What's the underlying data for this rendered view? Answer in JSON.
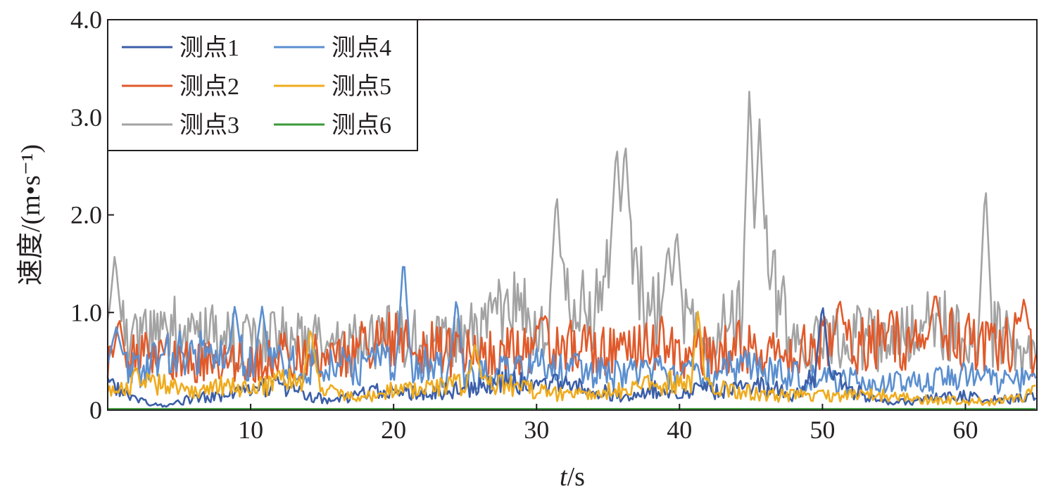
{
  "chart_data": {
    "type": "line",
    "xlabel": "t/s",
    "xlabel_var": "t",
    "xlabel_unit": "s",
    "ylabel": "速度/(m•s⁻¹)",
    "xlim": [
      0,
      65
    ],
    "ylim": [
      0,
      4.0
    ],
    "x_ticks": [
      10,
      20,
      30,
      40,
      50,
      60
    ],
    "x_tick_labels": [
      "10",
      "20",
      "30",
      "40",
      "50",
      "60"
    ],
    "y_ticks": [
      0,
      1.0,
      2.0,
      3.0,
      4.0
    ],
    "y_tick_labels": [
      "0",
      "1.0",
      "2.0",
      "3.0",
      "4.0"
    ],
    "grid": false,
    "legend_position": "top-left",
    "legend_columns": 2,
    "series": [
      {
        "name": "测点1",
        "color": "#3b5ea8",
        "x": [
          0,
          2,
          4,
          6,
          8,
          10,
          12,
          14,
          16,
          18,
          20,
          22,
          24,
          26,
          28,
          30,
          32,
          34,
          36,
          38,
          40,
          42,
          44,
          46,
          48,
          50,
          52,
          54,
          56,
          58,
          60,
          62,
          64,
          65
        ],
        "values": [
          0.3,
          0.1,
          0.05,
          0.12,
          0.15,
          0.2,
          0.25,
          0.15,
          0.1,
          0.18,
          0.22,
          0.15,
          0.2,
          0.25,
          0.3,
          0.25,
          0.35,
          0.2,
          0.15,
          0.22,
          0.18,
          0.2,
          0.2,
          0.25,
          0.15,
          0.4,
          0.2,
          0.1,
          0.08,
          0.12,
          0.15,
          0.1,
          0.12,
          0.15
        ],
        "peaks": [
          {
            "x": 50.0,
            "y": 1.1
          }
        ]
      },
      {
        "name": "测点2",
        "color": "#e05a2b",
        "x": [
          0,
          2,
          4,
          6,
          8,
          10,
          12,
          14,
          16,
          18,
          20,
          22,
          24,
          26,
          28,
          30,
          32,
          34,
          36,
          38,
          40,
          42,
          44,
          46,
          48,
          50,
          52,
          54,
          56,
          58,
          60,
          62,
          64,
          65
        ],
        "values": [
          0.45,
          0.55,
          0.6,
          0.5,
          0.55,
          0.5,
          0.6,
          0.55,
          0.6,
          0.65,
          0.7,
          0.65,
          0.6,
          0.55,
          0.6,
          0.65,
          0.7,
          0.6,
          0.7,
          0.75,
          0.55,
          0.6,
          0.65,
          0.55,
          0.6,
          0.7,
          0.65,
          0.75,
          0.7,
          0.75,
          0.7,
          0.65,
          0.7,
          0.6
        ],
        "peaks": [
          {
            "x": 0.8,
            "y": 0.95
          },
          {
            "x": 51.2,
            "y": 1.15
          },
          {
            "x": 57.9,
            "y": 1.22
          },
          {
            "x": 64.1,
            "y": 1.15
          }
        ]
      },
      {
        "name": "测点3",
        "color": "#a3a3a3",
        "x": [
          0,
          2,
          4,
          6,
          8,
          10,
          12,
          14,
          16,
          18,
          20,
          22,
          24,
          26,
          28,
          30,
          32,
          34,
          36,
          38,
          40,
          42,
          44,
          46,
          48,
          50,
          52,
          54,
          56,
          58,
          60,
          62,
          64,
          65
        ],
        "values": [
          0.9,
          0.7,
          0.85,
          0.8,
          0.75,
          0.7,
          0.75,
          0.7,
          0.65,
          0.7,
          0.75,
          0.7,
          0.65,
          0.8,
          1.0,
          0.9,
          1.1,
          1.0,
          1.6,
          1.0,
          0.9,
          0.8,
          0.9,
          1.5,
          0.7,
          0.7,
          0.75,
          0.7,
          0.8,
          0.9,
          0.7,
          0.8,
          0.6,
          0.55
        ],
        "peaks": [
          {
            "x": 0.5,
            "y": 1.6
          },
          {
            "x": 31.4,
            "y": 2.26
          },
          {
            "x": 35.6,
            "y": 2.75
          },
          {
            "x": 36.2,
            "y": 2.78
          },
          {
            "x": 39.2,
            "y": 1.72
          },
          {
            "x": 39.8,
            "y": 1.88
          },
          {
            "x": 44.9,
            "y": 3.35
          },
          {
            "x": 45.6,
            "y": 2.98
          },
          {
            "x": 61.4,
            "y": 2.35
          }
        ]
      },
      {
        "name": "测点4",
        "color": "#5b8fcf",
        "x": [
          0,
          2,
          4,
          6,
          8,
          10,
          12,
          14,
          16,
          18,
          20,
          22,
          24,
          26,
          28,
          30,
          32,
          34,
          36,
          38,
          40,
          42,
          44,
          46,
          48,
          50,
          52,
          54,
          56,
          58,
          60,
          62,
          64,
          65
        ],
        "values": [
          0.6,
          0.4,
          0.55,
          0.6,
          0.5,
          0.55,
          0.5,
          0.45,
          0.5,
          0.45,
          0.5,
          0.45,
          0.4,
          0.35,
          0.4,
          0.45,
          0.45,
          0.4,
          0.35,
          0.4,
          0.35,
          0.4,
          0.45,
          0.4,
          0.35,
          0.3,
          0.3,
          0.25,
          0.3,
          0.3,
          0.35,
          0.3,
          0.3,
          0.25
        ],
        "peaks": [
          {
            "x": 0.6,
            "y": 0.85
          },
          {
            "x": 8.9,
            "y": 1.08
          },
          {
            "x": 10.8,
            "y": 1.06
          },
          {
            "x": 20.7,
            "y": 1.6
          },
          {
            "x": 24.4,
            "y": 1.17
          }
        ]
      },
      {
        "name": "测点5",
        "color": "#efab1d",
        "x": [
          0,
          2,
          4,
          6,
          8,
          10,
          12,
          14,
          16,
          18,
          20,
          22,
          24,
          26,
          28,
          30,
          32,
          34,
          36,
          38,
          40,
          42,
          44,
          46,
          48,
          50,
          52,
          54,
          56,
          58,
          60,
          62,
          64,
          65
        ],
        "values": [
          0.2,
          0.3,
          0.25,
          0.2,
          0.25,
          0.2,
          0.3,
          0.35,
          0.15,
          0.15,
          0.2,
          0.2,
          0.25,
          0.3,
          0.25,
          0.2,
          0.15,
          0.2,
          0.2,
          0.25,
          0.3,
          0.25,
          0.2,
          0.15,
          0.15,
          0.15,
          0.15,
          0.15,
          0.12,
          0.1,
          0.1,
          0.08,
          0.15,
          0.2
        ],
        "peaks": [
          {
            "x": 14.2,
            "y": 0.85
          },
          {
            "x": 25.7,
            "y": 0.68
          },
          {
            "x": 41.3,
            "y": 1.04
          }
        ]
      },
      {
        "name": "测点6",
        "color": "#3a9a3a",
        "x": [
          0,
          65
        ],
        "values": [
          0.005,
          0.005
        ]
      }
    ]
  }
}
